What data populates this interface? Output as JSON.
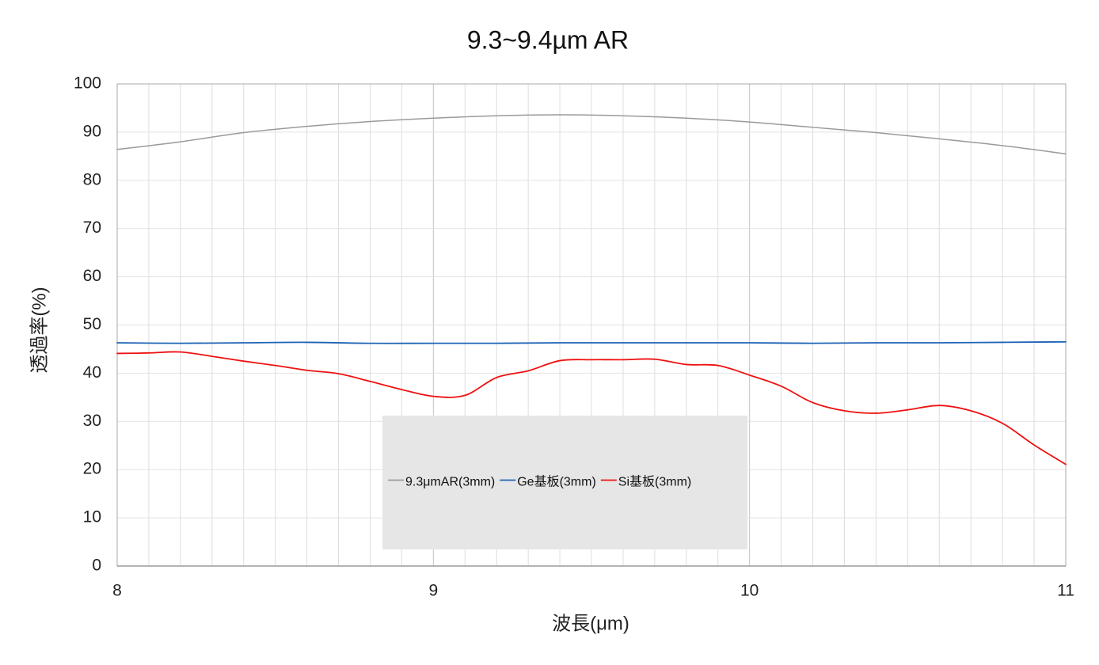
{
  "chart_data": {
    "type": "line",
    "title": "9.3~9.4µm AR",
    "xlabel": "波長(μm)",
    "ylabel": "透過率(%)",
    "xlim": [
      8,
      11
    ],
    "ylim": [
      0,
      100
    ],
    "x_ticks": [
      "8",
      "9",
      "10",
      "11"
    ],
    "y_ticks": [
      "0",
      "10",
      "20",
      "30",
      "40",
      "50",
      "60",
      "70",
      "80",
      "90",
      "100"
    ],
    "x_minor_step": 0.1,
    "y_grid_step": 10,
    "grid": true,
    "legend_position": "bottom-center (inside plot)",
    "series": [
      {
        "name": "9.3μmAR(3mm)",
        "color": "#9a9a9a",
        "points": [
          [
            8.0,
            86.4
          ],
          [
            8.2,
            88.0
          ],
          [
            8.4,
            89.9
          ],
          [
            8.6,
            91.2
          ],
          [
            8.8,
            92.2
          ],
          [
            9.0,
            92.9
          ],
          [
            9.2,
            93.4
          ],
          [
            9.4,
            93.6
          ],
          [
            9.6,
            93.4
          ],
          [
            9.8,
            92.9
          ],
          [
            10.0,
            92.1
          ],
          [
            10.2,
            91.0
          ],
          [
            10.4,
            89.9
          ],
          [
            10.6,
            88.6
          ],
          [
            10.8,
            87.2
          ],
          [
            11.0,
            85.5
          ]
        ]
      },
      {
        "name": "Ge基板(3mm)",
        "color": "#1f63b5",
        "points": [
          [
            8.0,
            46.3
          ],
          [
            8.2,
            46.2
          ],
          [
            8.4,
            46.3
          ],
          [
            8.6,
            46.4
          ],
          [
            8.8,
            46.2
          ],
          [
            9.0,
            46.2
          ],
          [
            9.2,
            46.2
          ],
          [
            9.4,
            46.3
          ],
          [
            9.6,
            46.3
          ],
          [
            9.8,
            46.3
          ],
          [
            10.0,
            46.3
          ],
          [
            10.2,
            46.2
          ],
          [
            10.4,
            46.3
          ],
          [
            10.6,
            46.3
          ],
          [
            10.8,
            46.4
          ],
          [
            11.0,
            46.5
          ]
        ]
      },
      {
        "name": "Si基板(3mm)",
        "color": "#ee1111",
        "points": [
          [
            8.0,
            44.1
          ],
          [
            8.1,
            44.2
          ],
          [
            8.2,
            44.4
          ],
          [
            8.3,
            43.5
          ],
          [
            8.4,
            42.5
          ],
          [
            8.5,
            41.6
          ],
          [
            8.6,
            40.6
          ],
          [
            8.7,
            39.9
          ],
          [
            8.8,
            38.3
          ],
          [
            8.9,
            36.6
          ],
          [
            9.0,
            35.2
          ],
          [
            9.1,
            35.4
          ],
          [
            9.2,
            39.1
          ],
          [
            9.3,
            40.5
          ],
          [
            9.4,
            42.6
          ],
          [
            9.5,
            42.8
          ],
          [
            9.6,
            42.8
          ],
          [
            9.7,
            42.9
          ],
          [
            9.8,
            41.8
          ],
          [
            9.9,
            41.6
          ],
          [
            10.0,
            39.6
          ],
          [
            10.1,
            37.3
          ],
          [
            10.2,
            33.9
          ],
          [
            10.3,
            32.2
          ],
          [
            10.4,
            31.7
          ],
          [
            10.5,
            32.4
          ],
          [
            10.6,
            33.3
          ],
          [
            10.7,
            32.2
          ],
          [
            10.8,
            29.6
          ],
          [
            10.9,
            25.1
          ],
          [
            11.0,
            21.1
          ]
        ]
      }
    ]
  }
}
